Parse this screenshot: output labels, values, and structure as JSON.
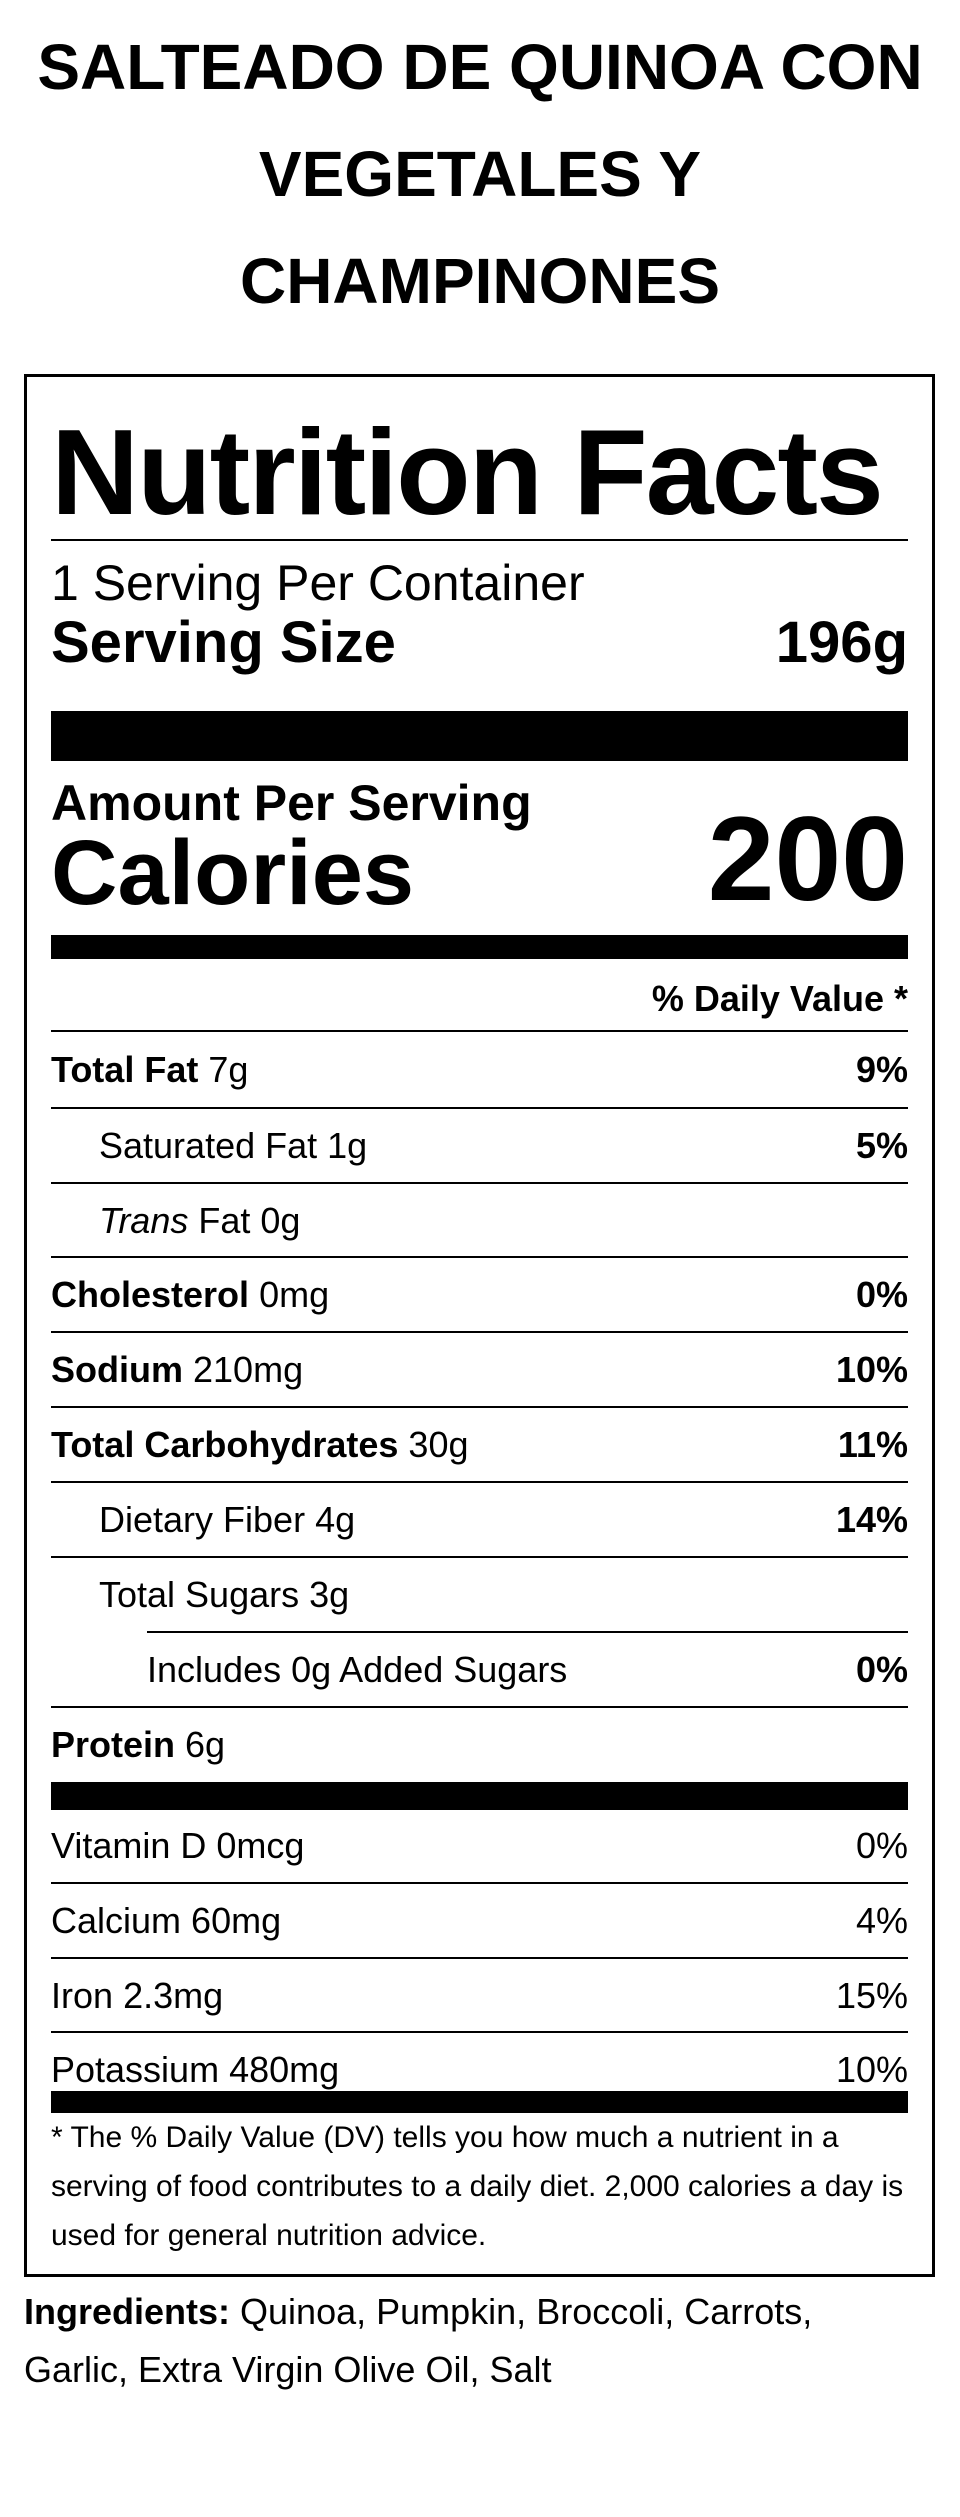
{
  "product": {
    "title_lines": [
      "SALTEADO DE QUINOA CON",
      "VEGETALES Y",
      "CHAMPINONES"
    ]
  },
  "label": {
    "heading": "Nutrition Facts",
    "servings_per_container": "1 Serving Per Container",
    "serving_size_label": "Serving Size",
    "serving_size_value": "196g",
    "amount_per_serving": "Amount Per Serving",
    "calories_label": "Calories",
    "calories_value": "200",
    "daily_value_header": "% Daily Value *",
    "nutrients": [
      {
        "name": "Total Fat",
        "amount": "7g",
        "dv": "9%"
      },
      {
        "name": "Saturated Fat",
        "amount": "1g",
        "dv": "5%"
      },
      {
        "name": "Trans",
        "name_suffix": "Fat",
        "amount": "0g",
        "dv": ""
      },
      {
        "name": "Cholesterol",
        "amount": "0mg",
        "dv": "0%"
      },
      {
        "name": "Sodium",
        "amount": "210mg",
        "dv": "10%"
      },
      {
        "name": "Total Carbohydrates",
        "amount": "30g",
        "dv": "11%"
      },
      {
        "name": "Dietary Fiber",
        "amount": "4g",
        "dv": "14%"
      },
      {
        "name": "Total Sugars",
        "amount": "3g",
        "dv": ""
      },
      {
        "name": "Includes 0g Added Sugars",
        "amount": "",
        "dv": "0%"
      },
      {
        "name": "Protein",
        "amount": "6g",
        "dv": ""
      }
    ],
    "vitamins": [
      {
        "name": "Vitamin D",
        "amount": "0mcg",
        "dv": "0%"
      },
      {
        "name": "Calcium",
        "amount": "60mg",
        "dv": "4%"
      },
      {
        "name": "Iron",
        "amount": "2.3mg",
        "dv": "15%"
      },
      {
        "name": "Potassium",
        "amount": "480mg",
        "dv": "10%"
      }
    ],
    "footnote": "* The % Daily Value (DV) tells you how much a nutrient in a serving of food contributes to a daily diet. 2,000 calories a day is used for general nutrition advice."
  },
  "ingredients": {
    "label": "Ingredients:",
    "text": "Quinoa, Pumpkin, Broccoli, Carrots, Garlic, Extra Virgin Olive Oil, Salt"
  }
}
